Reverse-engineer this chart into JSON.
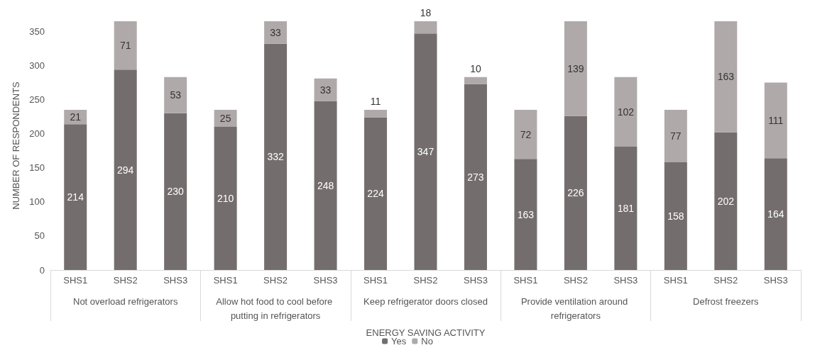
{
  "chart_data": {
    "type": "bar",
    "stacked": true,
    "xlabel": "ENERGY SAVING ACTIVITY",
    "ylabel": "NUMBER OF RESPONDENTS",
    "categories": [
      "SHS1",
      "SHS2",
      "SHS3",
      "SHS1",
      "SHS2",
      "SHS3",
      "SHS1",
      "SHS2",
      "SHS3",
      "SHS1",
      "SHS2",
      "SHS3",
      "SHS1",
      "SHS2",
      "SHS3"
    ],
    "annotations": [
      "Not overload refrigerators",
      "Allow hot food to cool before putting in refrigerators",
      "Keep refrigerator doors closed",
      "Provide ventilation around refrigerators",
      "Defrost freezers"
    ],
    "series": [
      {
        "name": "Yes",
        "color": "#736e6d",
        "values": [
          214,
          294,
          230,
          210,
          332,
          248,
          224,
          347,
          273,
          163,
          226,
          181,
          158,
          202,
          164
        ]
      },
      {
        "name": "No",
        "color": "#afaaa9",
        "values": [
          21,
          71,
          53,
          25,
          33,
          33,
          11,
          18,
          10,
          72,
          139,
          102,
          77,
          163,
          111
        ]
      }
    ],
    "ylim": [
      0,
      365
    ],
    "yticks": [
      0,
      50,
      100,
      150,
      200,
      250,
      300,
      350
    ],
    "grid": false,
    "data_labels": true,
    "legend": "bottom"
  }
}
